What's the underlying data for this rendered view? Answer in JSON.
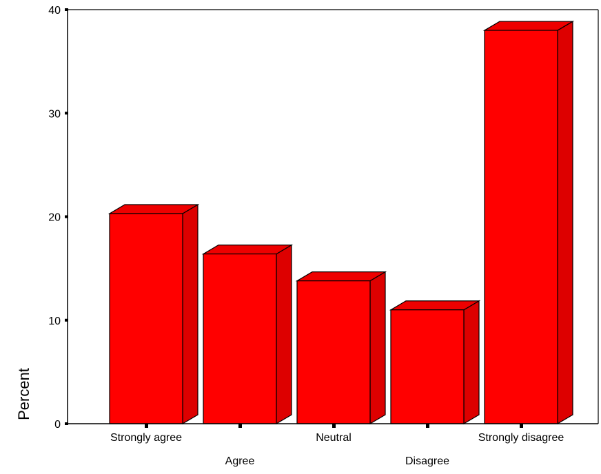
{
  "chart_data": {
    "type": "bar",
    "style": "3d",
    "categories": [
      "Strongly agree",
      "Agree",
      "Neutral",
      "Disagree",
      "Strongly disagree"
    ],
    "values": [
      20.3,
      16.4,
      13.8,
      11.0,
      38.0
    ],
    "ylabel": "Percent",
    "xlabel": "",
    "ylim": [
      0,
      40
    ],
    "yticks": [
      0,
      10,
      20,
      30,
      40
    ],
    "grid": false,
    "legend": "none",
    "colors": {
      "bar_front": "#ff0000",
      "bar_top": "#ee0000",
      "bar_side": "#dd0000",
      "outline": "#000000"
    }
  }
}
